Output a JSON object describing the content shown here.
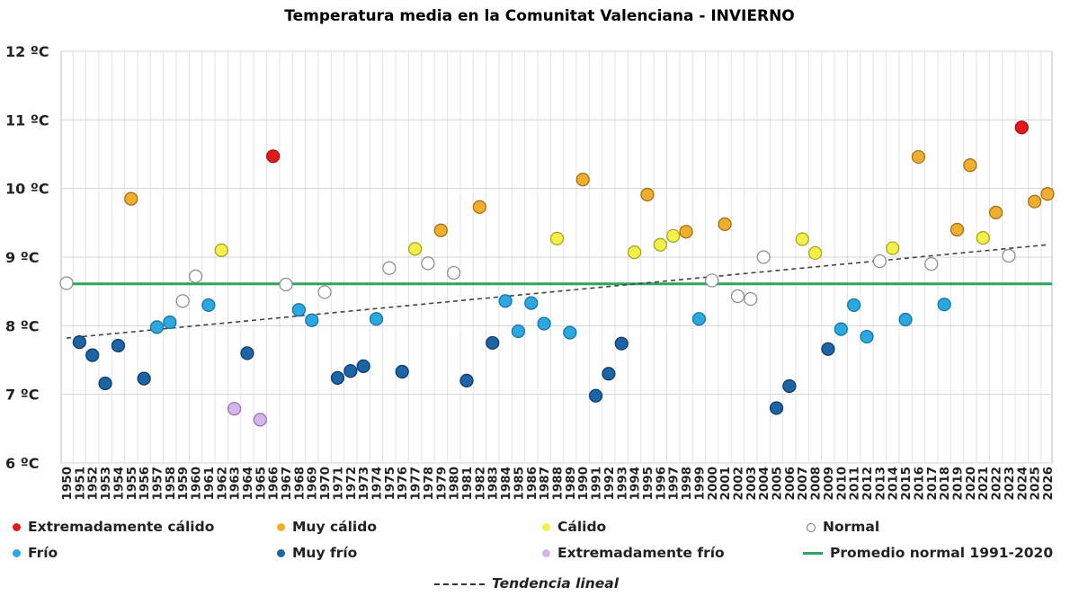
{
  "chart_data": {
    "type": "scatter",
    "title": "Temperatura media en la Comunitat Valenciana - INVIERNO",
    "xlabel": "",
    "ylabel": "",
    "ylim": [
      6,
      12
    ],
    "yticks": [
      "6 ºC",
      "7 ºC",
      "8 ºC",
      "9 ºC",
      "10 ºC",
      "11 ºC",
      "12 ºC"
    ],
    "x_range": [
      1950,
      2026
    ],
    "grid": true,
    "legend_position": "bottom",
    "categories": [
      {
        "key": "ext_calido",
        "label": "Extremadamente cálido",
        "color": "#e31a1c",
        "stroke": "#9b1010"
      },
      {
        "key": "muy_calido",
        "label": "Muy cálido",
        "color": "#f0ae2e",
        "stroke": "#9c6d12"
      },
      {
        "key": "calido",
        "label": "Cálido",
        "color": "#f4f04a",
        "stroke": "#a5a21e"
      },
      {
        "key": "normal",
        "label": "Normal",
        "color": "#ffffff",
        "stroke": "#8a8a8a"
      },
      {
        "key": "frio",
        "label": "Frío",
        "color": "#2ca8e0",
        "stroke": "#15729c"
      },
      {
        "key": "muy_frio",
        "label": "Muy frío",
        "color": "#1c64a4",
        "stroke": "#0d3a63"
      },
      {
        "key": "ext_frio",
        "label": "Extremadamente frío",
        "color": "#d6b4ec",
        "stroke": "#8f72a8"
      }
    ],
    "reference_line": {
      "label": "Promedio normal 1991-2020",
      "value": 8.61,
      "color": "#2ea55a"
    },
    "trend_line": {
      "label": "Tendencia lineal",
      "start": [
        1950,
        7.82
      ],
      "end": [
        2026,
        9.18
      ]
    },
    "points": [
      {
        "year": 1950,
        "value": 8.62,
        "category": "normal"
      },
      {
        "year": 1951,
        "value": 7.76,
        "category": "muy_frio"
      },
      {
        "year": 1952,
        "value": 7.57,
        "category": "muy_frio"
      },
      {
        "year": 1953,
        "value": 7.16,
        "category": "muy_frio"
      },
      {
        "year": 1954,
        "value": 7.71,
        "category": "muy_frio"
      },
      {
        "year": 1955,
        "value": 9.85,
        "category": "muy_calido"
      },
      {
        "year": 1956,
        "value": 7.23,
        "category": "muy_frio"
      },
      {
        "year": 1957,
        "value": 7.98,
        "category": "frio"
      },
      {
        "year": 1958,
        "value": 8.05,
        "category": "frio"
      },
      {
        "year": 1959,
        "value": 8.36,
        "category": "normal"
      },
      {
        "year": 1960,
        "value": 8.72,
        "category": "normal"
      },
      {
        "year": 1961,
        "value": 8.3,
        "category": "frio"
      },
      {
        "year": 1962,
        "value": 9.1,
        "category": "calido"
      },
      {
        "year": 1963,
        "value": 6.79,
        "category": "ext_frio"
      },
      {
        "year": 1964,
        "value": 7.6,
        "category": "muy_frio"
      },
      {
        "year": 1965,
        "value": 6.63,
        "category": "ext_frio"
      },
      {
        "year": 1966,
        "value": 10.47,
        "category": "ext_calido"
      },
      {
        "year": 1967,
        "value": 8.6,
        "category": "normal"
      },
      {
        "year": 1968,
        "value": 8.23,
        "category": "frio"
      },
      {
        "year": 1969,
        "value": 8.08,
        "category": "frio"
      },
      {
        "year": 1970,
        "value": 8.49,
        "category": "normal"
      },
      {
        "year": 1971,
        "value": 7.24,
        "category": "muy_frio"
      },
      {
        "year": 1972,
        "value": 7.34,
        "category": "muy_frio"
      },
      {
        "year": 1973,
        "value": 7.41,
        "category": "muy_frio"
      },
      {
        "year": 1974,
        "value": 8.1,
        "category": "frio"
      },
      {
        "year": 1975,
        "value": 8.84,
        "category": "normal"
      },
      {
        "year": 1976,
        "value": 7.33,
        "category": "muy_frio"
      },
      {
        "year": 1977,
        "value": 9.12,
        "category": "calido"
      },
      {
        "year": 1978,
        "value": 8.91,
        "category": "normal"
      },
      {
        "year": 1979,
        "value": 9.39,
        "category": "muy_calido"
      },
      {
        "year": 1980,
        "value": 8.77,
        "category": "normal"
      },
      {
        "year": 1981,
        "value": 7.2,
        "category": "muy_frio"
      },
      {
        "year": 1982,
        "value": 9.73,
        "category": "muy_calido"
      },
      {
        "year": 1983,
        "value": 7.75,
        "category": "muy_frio"
      },
      {
        "year": 1984,
        "value": 8.36,
        "category": "frio"
      },
      {
        "year": 1985,
        "value": 7.92,
        "category": "frio"
      },
      {
        "year": 1986,
        "value": 8.33,
        "category": "frio"
      },
      {
        "year": 1987,
        "value": 8.03,
        "category": "frio"
      },
      {
        "year": 1988,
        "value": 9.27,
        "category": "calido"
      },
      {
        "year": 1989,
        "value": 7.9,
        "category": "frio"
      },
      {
        "year": 1990,
        "value": 10.13,
        "category": "muy_calido"
      },
      {
        "year": 1991,
        "value": 6.98,
        "category": "muy_frio"
      },
      {
        "year": 1992,
        "value": 7.3,
        "category": "muy_frio"
      },
      {
        "year": 1993,
        "value": 7.74,
        "category": "muy_frio"
      },
      {
        "year": 1994,
        "value": 9.07,
        "category": "calido"
      },
      {
        "year": 1995,
        "value": 9.91,
        "category": "muy_calido"
      },
      {
        "year": 1996,
        "value": 9.18,
        "category": "calido"
      },
      {
        "year": 1997,
        "value": 9.31,
        "category": "calido"
      },
      {
        "year": 1998,
        "value": 9.37,
        "category": "muy_calido"
      },
      {
        "year": 1999,
        "value": 8.1,
        "category": "frio"
      },
      {
        "year": 2000,
        "value": 8.66,
        "category": "normal"
      },
      {
        "year": 2001,
        "value": 9.48,
        "category": "muy_calido"
      },
      {
        "year": 2002,
        "value": 8.43,
        "category": "normal"
      },
      {
        "year": 2003,
        "value": 8.39,
        "category": "normal"
      },
      {
        "year": 2004,
        "value": 9.0,
        "category": "normal"
      },
      {
        "year": 2005,
        "value": 6.8,
        "category": "muy_frio"
      },
      {
        "year": 2006,
        "value": 7.12,
        "category": "muy_frio"
      },
      {
        "year": 2007,
        "value": 9.26,
        "category": "calido"
      },
      {
        "year": 2008,
        "value": 9.06,
        "category": "calido"
      },
      {
        "year": 2009,
        "value": 7.66,
        "category": "muy_frio"
      },
      {
        "year": 2010,
        "value": 7.95,
        "category": "frio"
      },
      {
        "year": 2011,
        "value": 8.3,
        "category": "frio"
      },
      {
        "year": 2012,
        "value": 7.84,
        "category": "frio"
      },
      {
        "year": 2013,
        "value": 8.94,
        "category": "normal"
      },
      {
        "year": 2014,
        "value": 9.13,
        "category": "calido"
      },
      {
        "year": 2015,
        "value": 8.09,
        "category": "frio"
      },
      {
        "year": 2016,
        "value": 10.46,
        "category": "muy_calido"
      },
      {
        "year": 2017,
        "value": 8.9,
        "category": "normal"
      },
      {
        "year": 2018,
        "value": 8.31,
        "category": "frio"
      },
      {
        "year": 2019,
        "value": 9.4,
        "category": "muy_calido"
      },
      {
        "year": 2020,
        "value": 10.34,
        "category": "muy_calido"
      },
      {
        "year": 2021,
        "value": 9.28,
        "category": "calido"
      },
      {
        "year": 2022,
        "value": 9.65,
        "category": "muy_calido"
      },
      {
        "year": 2023,
        "value": 9.02,
        "category": "normal"
      },
      {
        "year": 2024,
        "value": 10.89,
        "category": "ext_calido"
      },
      {
        "year": 2025,
        "value": 9.81,
        "category": "muy_calido"
      },
      {
        "year": 2026,
        "value": 9.92,
        "category": "muy_calido"
      }
    ]
  }
}
